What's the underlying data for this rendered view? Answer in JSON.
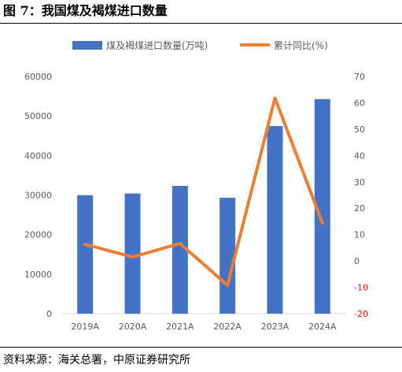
{
  "figure": {
    "title": "图 7：我国煤及褐煤进口数量",
    "source": "资料来源：海关总署，中原证券研究所"
  },
  "colors": {
    "bar": "#4472C4",
    "line": "#ED7D31",
    "negative_tick": "#FF0000",
    "axis_text": "#595959",
    "axis_line": "#D9D9D9"
  },
  "chart_data": {
    "type": "bar",
    "categories": [
      "2019A",
      "2020A",
      "2021A",
      "2022A",
      "2023A",
      "2024A"
    ],
    "series": [
      {
        "name": "煤及褐煤进口数量(万吨)",
        "type": "bar",
        "axis": "left",
        "values": [
          29970,
          30400,
          32320,
          29320,
          47440,
          54270
        ]
      },
      {
        "name": "累计同比(%)",
        "type": "line",
        "axis": "right",
        "values": [
          6.3,
          1.5,
          6.6,
          -9.2,
          61.8,
          14.4
        ]
      }
    ],
    "y_left": {
      "min": 0,
      "max": 60000,
      "ticks": [
        0,
        10000,
        20000,
        30000,
        40000,
        50000,
        60000
      ]
    },
    "y_right": {
      "min": -20,
      "max": 70,
      "ticks": [
        -20,
        -10,
        0,
        10,
        20,
        30,
        40,
        50,
        60,
        70
      ]
    },
    "grid": false,
    "legend": "top"
  }
}
